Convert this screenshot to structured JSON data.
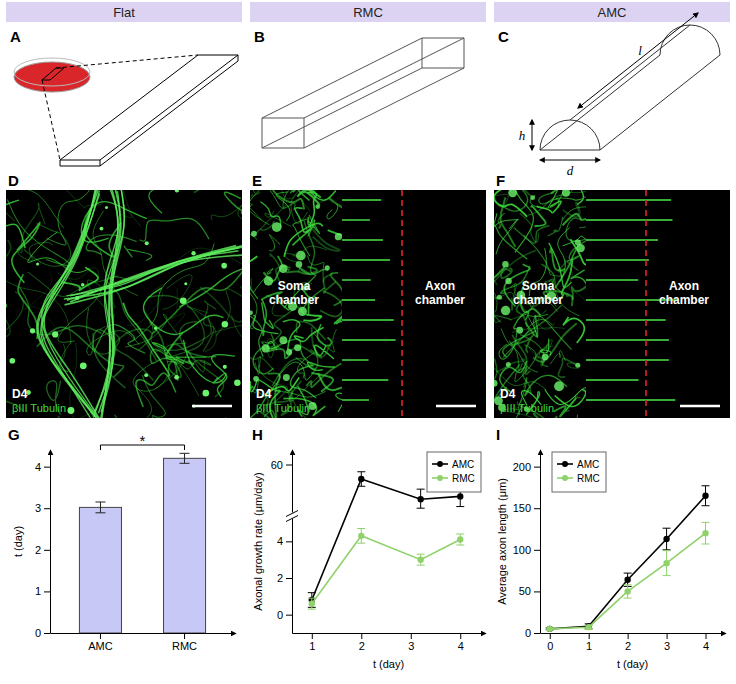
{
  "headers": [
    "Flat",
    "RMC",
    "AMC"
  ],
  "panel_labels": [
    "A",
    "B",
    "C",
    "D",
    "E",
    "F",
    "G",
    "H",
    "I"
  ],
  "channel_dimension_labels": [
    "l",
    "h",
    "d"
  ],
  "micrographs": [
    {
      "day": "D4",
      "stain": "βIII Tubulin"
    },
    {
      "day": "D4",
      "stain": "βIII Tubulin",
      "left_label": "Soma chamber",
      "right_label": "Axon chamber"
    },
    {
      "day": "D4",
      "stain": "βIII Tubulin",
      "left_label": "Soma chamber",
      "right_label": "Axon chamber"
    }
  ],
  "chart_data": [
    {
      "type": "bar",
      "categories": [
        "AMC",
        "RMC"
      ],
      "values": [
        3.02,
        4.2
      ],
      "errors": [
        0.13,
        0.12
      ],
      "color": "#c8c8f7",
      "y_label": "t (day)",
      "ylim": [
        0,
        4.4
      ],
      "yticks": [
        0,
        1,
        2,
        3,
        4
      ],
      "annotation": "*"
    },
    {
      "type": "line",
      "x": [
        1,
        2,
        3.2,
        4
      ],
      "xlim": [
        0.6,
        4.5
      ],
      "xticks": [
        1,
        2,
        3,
        4
      ],
      "ylim": [
        -1,
        65
      ],
      "ybreak": [
        5,
        45
      ],
      "yticks": [
        0,
        2,
        4,
        60
      ],
      "x_label": "t (day)",
      "y_label": "Axonal growth rate (μm/day)",
      "legend": "top-right",
      "marker": "circle",
      "series": [
        {
          "name": "AMC",
          "color": "#000000",
          "values": [
            0.8,
            55,
            48,
            49
          ],
          "errors": [
            0.4,
            2.5,
            3.5,
            3.5
          ]
        },
        {
          "name": "RMC",
          "color": "#8fd16a",
          "values": [
            0.6,
            4.3,
            3.0,
            4.1
          ],
          "errors": [
            0.3,
            0.4,
            0.3,
            0.3
          ]
        }
      ]
    },
    {
      "type": "line",
      "x": [
        0,
        1,
        2,
        3,
        4
      ],
      "xlim": [
        -0.25,
        4.5
      ],
      "xticks": [
        0,
        1,
        2,
        3,
        4
      ],
      "ylim": [
        0,
        220
      ],
      "yticks": [
        0,
        50,
        100,
        150,
        200
      ],
      "x_label": "t (day)",
      "y_label": "Average axon length (μm)",
      "legend": "top-left",
      "marker": "circle",
      "series": [
        {
          "name": "AMC",
          "color": "#000000",
          "values": [
            5,
            8,
            64,
            113,
            165
          ],
          "errors": [
            1,
            3,
            8,
            13,
            12
          ]
        },
        {
          "name": "RMC",
          "color": "#8fd16a",
          "values": [
            5,
            7,
            50,
            84,
            120
          ],
          "errors": [
            1,
            2,
            8,
            15,
            13
          ]
        }
      ]
    }
  ]
}
